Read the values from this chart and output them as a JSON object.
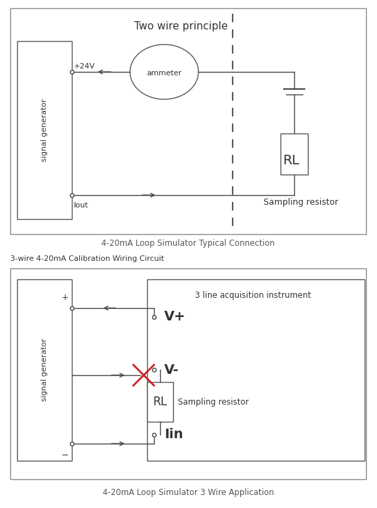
{
  "bg_color": "#ffffff",
  "diagram1": {
    "title": "Two wire principle",
    "caption": "4-20mA Loop Simulator Typical Connection",
    "signal_gen_label": "signal generator",
    "plus24v_label": "+24V",
    "iout_label": "Iout",
    "ammeter_label": "ammeter",
    "rl_label": "RL",
    "sampling_label": "Sampling resistor"
  },
  "diagram2": {
    "header": "3-wire 4-20mA Calibration Wiring Circuit",
    "caption": "4-20mA Loop Simulator 3 Wire Application",
    "signal_gen_label": "signal generator",
    "plus_label": "+",
    "minus_label": "−",
    "acq_label": "3 line acquisition instrument",
    "vplus_label": "V+",
    "vminus_label": "V-",
    "rl_label": "RL",
    "sampling_label": "Sampling resistor",
    "iin_label": "Iin"
  }
}
